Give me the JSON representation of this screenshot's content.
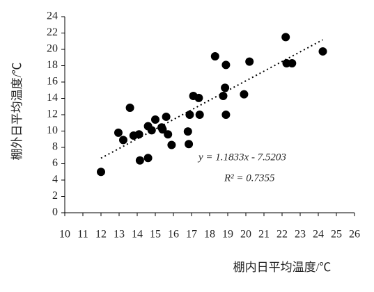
{
  "chart_data": {
    "type": "scatter",
    "x_label": "棚内日平均温度/℃",
    "y_label": "棚外日平均温度/℃",
    "x": [
      12.0,
      12.96,
      13.23,
      13.6,
      13.8,
      14.1,
      14.15,
      14.6,
      14.6,
      14.8,
      15.0,
      15.35,
      15.4,
      15.6,
      15.7,
      15.9,
      16.8,
      16.85,
      16.9,
      17.1,
      17.4,
      17.45,
      18.3,
      18.75,
      18.9,
      18.85,
      18.9,
      19.9,
      20.2,
      22.2,
      22.25,
      22.55,
      24.25
    ],
    "values": [
      5.0,
      9.8,
      8.9,
      12.85,
      9.45,
      9.6,
      6.4,
      6.7,
      10.6,
      10.1,
      11.4,
      10.45,
      10.2,
      11.75,
      9.6,
      8.3,
      9.95,
      8.4,
      12.0,
      14.3,
      14.05,
      12.0,
      19.15,
      14.3,
      18.1,
      15.3,
      12.0,
      14.5,
      18.5,
      21.5,
      18.3,
      18.3,
      19.75
    ],
    "color": "#000000",
    "xlim": [
      10,
      26
    ],
    "xticks": [
      10,
      11,
      12,
      13,
      14,
      15,
      16,
      17,
      18,
      19,
      20,
      21,
      22,
      23,
      24,
      25,
      26
    ],
    "ylim": [
      0,
      24
    ],
    "yticks": [
      0,
      2,
      4,
      6,
      8,
      10,
      12,
      14,
      16,
      18,
      20,
      22,
      24
    ],
    "grid": false,
    "trendline": {
      "slope": 1.1833,
      "intercept": -7.5203,
      "equation": "y = 1.1833x - 7.5203",
      "r2_label": "R² = 0.7355"
    }
  }
}
